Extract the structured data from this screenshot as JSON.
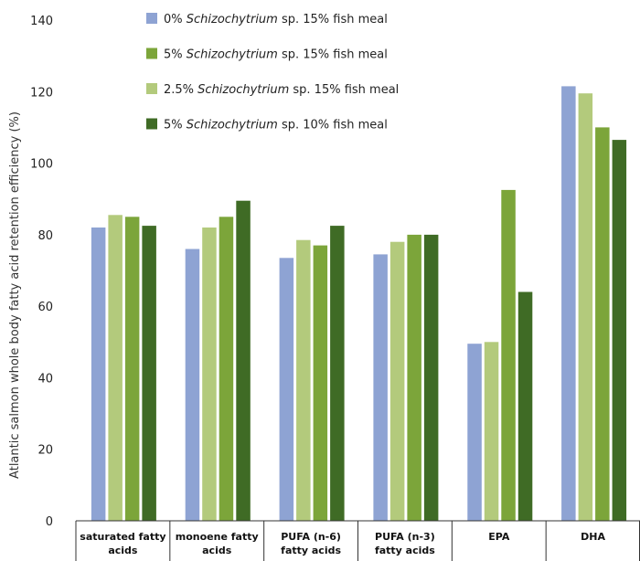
{
  "chart_data": {
    "type": "bar",
    "title": "",
    "xlabel": "",
    "ylabel": "Atlantic salmon whole body fatty acid retention efficiency (%)",
    "ylim": [
      0,
      140
    ],
    "yticks": [
      0,
      20,
      40,
      60,
      80,
      100,
      120,
      140
    ],
    "grid": false,
    "legend_position": "top",
    "categories": [
      [
        "saturated fatty",
        "acids"
      ],
      [
        "monoene fatty",
        "acids"
      ],
      [
        "PUFA (n-6)",
        "fatty acids"
      ],
      [
        "PUFA (n-3)",
        "fatty acids"
      ],
      [
        "EPA"
      ],
      [
        "DHA"
      ]
    ],
    "series": [
      {
        "legend": {
          "pre": "0% ",
          "italic": "Schizochytrium",
          "post": " sp. 15% fish meal"
        },
        "color": "#8ea3d3",
        "values": [
          82,
          76,
          73.5,
          74.5,
          49.5,
          121.5
        ]
      },
      {
        "legend": {
          "pre": "2.5% ",
          "italic": "Schizochytrium",
          "post": " sp. 15% fish meal"
        },
        "color": "#b3ca7c",
        "values": [
          85.5,
          82,
          78.5,
          78,
          50,
          119.5
        ]
      },
      {
        "legend": {
          "pre": "5% ",
          "italic": "Schizochytrium",
          "post": " sp. 15% fish meal"
        },
        "color": "#7ca53a",
        "values": [
          85,
          85,
          77,
          80,
          92.5,
          110
        ]
      },
      {
        "legend": {
          "pre": "5% ",
          "italic": "Schizochytrium",
          "post": " sp. 10% fish meal"
        },
        "color": "#3f6b25",
        "values": [
          82.5,
          89.5,
          82.5,
          80,
          64,
          106.5
        ]
      }
    ],
    "legend_order": [
      0,
      2,
      1,
      3
    ]
  }
}
